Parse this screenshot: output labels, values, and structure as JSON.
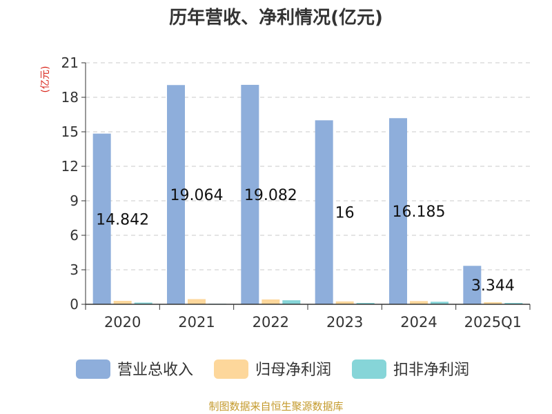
{
  "chart_data": {
    "type": "bar",
    "title": "历年营收、净利情况(亿元)",
    "ylabel": "(亿元)",
    "xlabel": "",
    "categories": [
      "2020",
      "2021",
      "2022",
      "2023",
      "2024",
      "2025Q1"
    ],
    "ylim": [
      0,
      21
    ],
    "yticks": [
      0,
      3,
      6,
      9,
      12,
      15,
      18,
      21
    ],
    "grid": true,
    "legend_position": "bottom",
    "series": [
      {
        "name": "营业总收入",
        "color": "#8eaedb",
        "values": [
          14.842,
          19.064,
          19.082,
          16,
          16.185,
          3.344
        ],
        "labels": [
          "14.842",
          "19.064",
          "19.082",
          "16",
          "16.185",
          "3.344"
        ]
      },
      {
        "name": "归母净利润",
        "color": "#fdd79b",
        "values": [
          0.3,
          0.45,
          0.42,
          0.25,
          0.28,
          0.18
        ]
      },
      {
        "name": "扣非净利润",
        "color": "#86d5d8",
        "values": [
          0.15,
          0.05,
          0.35,
          0.12,
          0.22,
          0.12
        ]
      }
    ]
  },
  "footer": {
    "source": "制图数据来自恒生聚源数据库"
  }
}
